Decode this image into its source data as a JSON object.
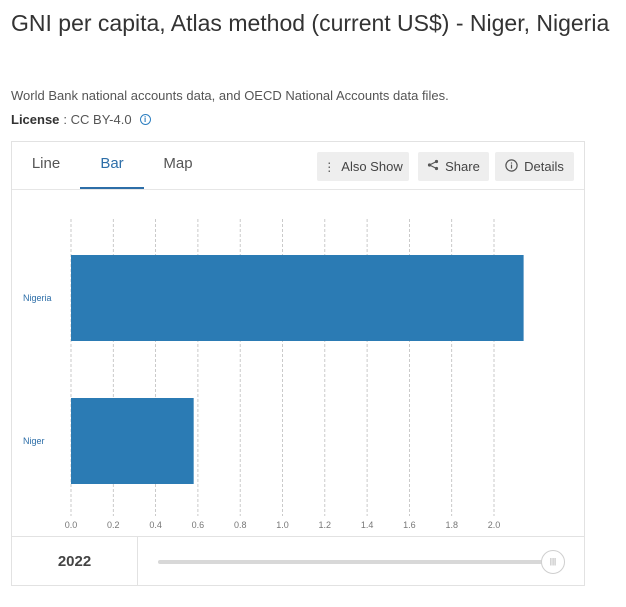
{
  "page": {
    "title": "GNI per capita, Atlas method (current US$) - Niger, Nigeria",
    "source": "World Bank national accounts data, and OECD National Accounts data files.",
    "license_label": "License",
    "license_value": ": CC BY-4.0"
  },
  "tabs": [
    {
      "label": "Line"
    },
    {
      "label": "Bar"
    },
    {
      "label": "Map"
    }
  ],
  "toolbar": {
    "also_show": "Also Show",
    "share": "Share",
    "details": "Details"
  },
  "footer": {
    "year": "2022"
  },
  "colors": {
    "bar": "#2b7bb4",
    "accent": "#2d6ea8"
  },
  "chart_data": {
    "type": "bar",
    "orientation": "horizontal",
    "categories": [
      "Nigeria",
      "Niger"
    ],
    "values": [
      2.14,
      0.58
    ],
    "x_ticks": [
      "0.0",
      "0.2",
      "0.4",
      "0.6",
      "0.8",
      "1.0",
      "1.2",
      "1.4",
      "1.6",
      "1.8",
      "2.0"
    ],
    "xlim": [
      0,
      2.2
    ],
    "grid": true,
    "title": "",
    "xlabel": "",
    "ylabel": ""
  }
}
